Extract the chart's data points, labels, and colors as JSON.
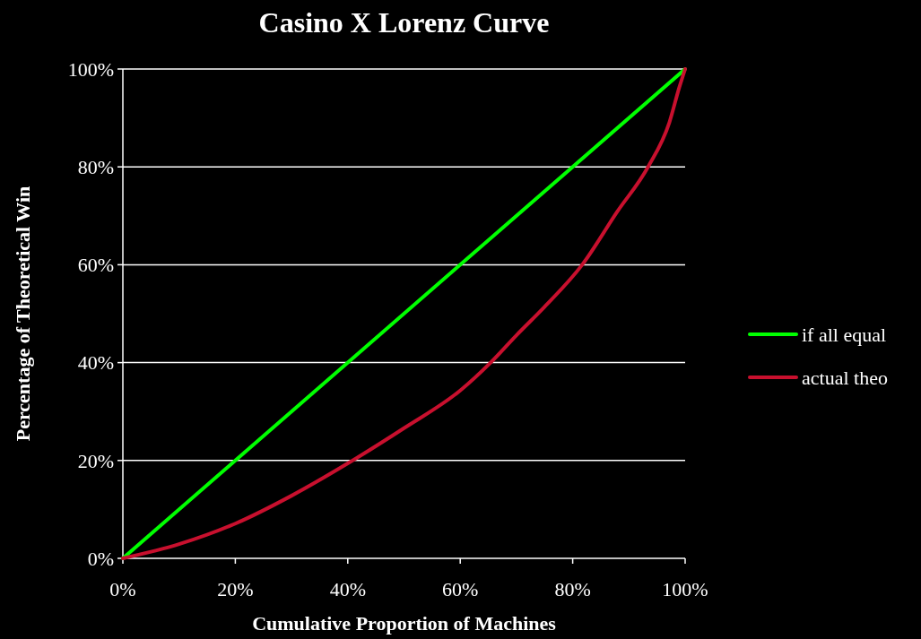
{
  "chart_data": {
    "type": "line",
    "title": "Casino X Lorenz Curve",
    "xlabel": "Cumulative Proportion of Machines",
    "ylabel": "Percentage of Theoretical Win",
    "x": [
      0,
      10,
      20,
      30,
      40,
      50,
      60,
      65.4,
      70,
      75,
      81.7,
      87.9,
      93.4,
      97.2,
      99,
      100
    ],
    "series": [
      {
        "name": "if all equal",
        "color": "#00ff00",
        "x": [
          0,
          100
        ],
        "values": [
          0,
          100
        ]
      },
      {
        "name": "actual theo",
        "color": "#c8102e",
        "values": [
          0,
          2.9,
          7.1,
          12.8,
          19.4,
          26.6,
          34.3,
          40,
          45.6,
          51.4,
          60,
          70.8,
          80,
          89.1,
          96.4,
          100
        ]
      }
    ],
    "xlim": [
      0,
      100
    ],
    "ylim": [
      0,
      100
    ],
    "xticks": [
      {
        "value": 0,
        "label": "0%"
      },
      {
        "value": 20,
        "label": "20%"
      },
      {
        "value": 40,
        "label": "40%"
      },
      {
        "value": 60,
        "label": "60%"
      },
      {
        "value": 80,
        "label": "80%"
      },
      {
        "value": 100,
        "label": "100%"
      }
    ],
    "yticks": [
      {
        "value": 0,
        "label": "0%"
      },
      {
        "value": 20,
        "label": "20%"
      },
      {
        "value": 40,
        "label": "40%"
      },
      {
        "value": 60,
        "label": "60%"
      },
      {
        "value": 80,
        "label": "80%"
      },
      {
        "value": 100,
        "label": "100%"
      }
    ],
    "grid": "y",
    "legend": "right",
    "marker": "none",
    "line_style": "solid"
  }
}
